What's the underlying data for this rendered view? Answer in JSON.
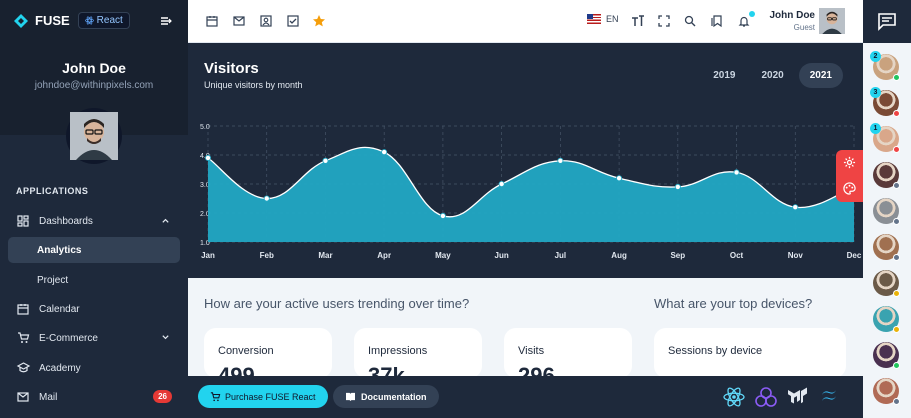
{
  "brand": {
    "name": "FUSE",
    "badge": "React"
  },
  "user": {
    "name": "John Doe",
    "email": "johndoe@withinpixels.com",
    "role": "Guest"
  },
  "nav": {
    "section": "APPLICATIONS",
    "items": [
      {
        "label": "Dashboards",
        "icon": "dashboard-icon",
        "expanded": true
      },
      {
        "label": "Analytics",
        "active": true
      },
      {
        "label": "Project"
      },
      {
        "label": "Calendar",
        "icon": "calendar-icon"
      },
      {
        "label": "E-Commerce",
        "icon": "cart-icon"
      },
      {
        "label": "Academy",
        "icon": "academy-icon"
      },
      {
        "label": "Mail",
        "icon": "mail-icon",
        "count": "26"
      }
    ]
  },
  "topbar": {
    "language": "EN",
    "shortcut_icons": [
      "calendar-icon",
      "mail-icon",
      "contacts-icon",
      "tasks-icon",
      "star-icon"
    ]
  },
  "visitors": {
    "title": "Visitors",
    "subtitle": "Unique visitors by month",
    "years": [
      "2019",
      "2020",
      "2021"
    ],
    "selected_year": "2021"
  },
  "chart_data": {
    "type": "area",
    "title": "Visitors",
    "subtitle": "Unique visitors by month",
    "categories": [
      "Jan",
      "Feb",
      "Mar",
      "Apr",
      "May",
      "Jun",
      "Jul",
      "Aug",
      "Sep",
      "Oct",
      "Nov",
      "Dec"
    ],
    "series": [
      {
        "values": [
          3.9,
          2.5,
          3.8,
          4.1,
          1.9,
          3.0,
          3.8,
          3.2,
          2.9,
          3.4,
          2.2,
          2.9
        ]
      }
    ],
    "ylim": [
      1.0,
      5.0
    ],
    "yticks": [
      "1.0",
      "2.0",
      "3.0",
      "4.0",
      "5.0"
    ],
    "grid": true,
    "fill_color": "#22a8c4",
    "line_color": "#ffffff"
  },
  "insights": {
    "question_left": "How are your active users trending over time?",
    "question_right": "What are your top devices?",
    "cards": [
      {
        "label": "Conversion",
        "value": "499"
      },
      {
        "label": "Impressions",
        "value": "37k"
      },
      {
        "label": "Visits",
        "value": "296"
      },
      {
        "label": "Sessions by device",
        "value": ""
      }
    ]
  },
  "footer": {
    "purchase": "Purchase FUSE React",
    "docs": "Documentation",
    "tech_icons": [
      "react-icon",
      "redux-icon",
      "mui-icon",
      "tailwind-icon"
    ]
  },
  "contacts": [
    {
      "badge": "2",
      "status": "#22c55e",
      "color": "#c9a27e"
    },
    {
      "badge": "3",
      "status": "#ef4444",
      "color": "#7a4a35"
    },
    {
      "badge": "1",
      "status": "#ef4444",
      "color": "#d9a78a"
    },
    {
      "badge": "",
      "status": "#64748b",
      "color": "#5a3a3a"
    },
    {
      "badge": "",
      "status": "#64748b",
      "color": "#8a8f95"
    },
    {
      "badge": "",
      "status": "#64748b",
      "color": "#a07050"
    },
    {
      "badge": "",
      "status": "#eab308",
      "color": "#6b5a48"
    },
    {
      "badge": "",
      "status": "#eab308",
      "color": "#3aa3b0"
    },
    {
      "badge": "",
      "status": "#22c55e",
      "color": "#4a3050"
    },
    {
      "badge": "",
      "status": "#64748b",
      "color": "#b06a55"
    }
  ]
}
